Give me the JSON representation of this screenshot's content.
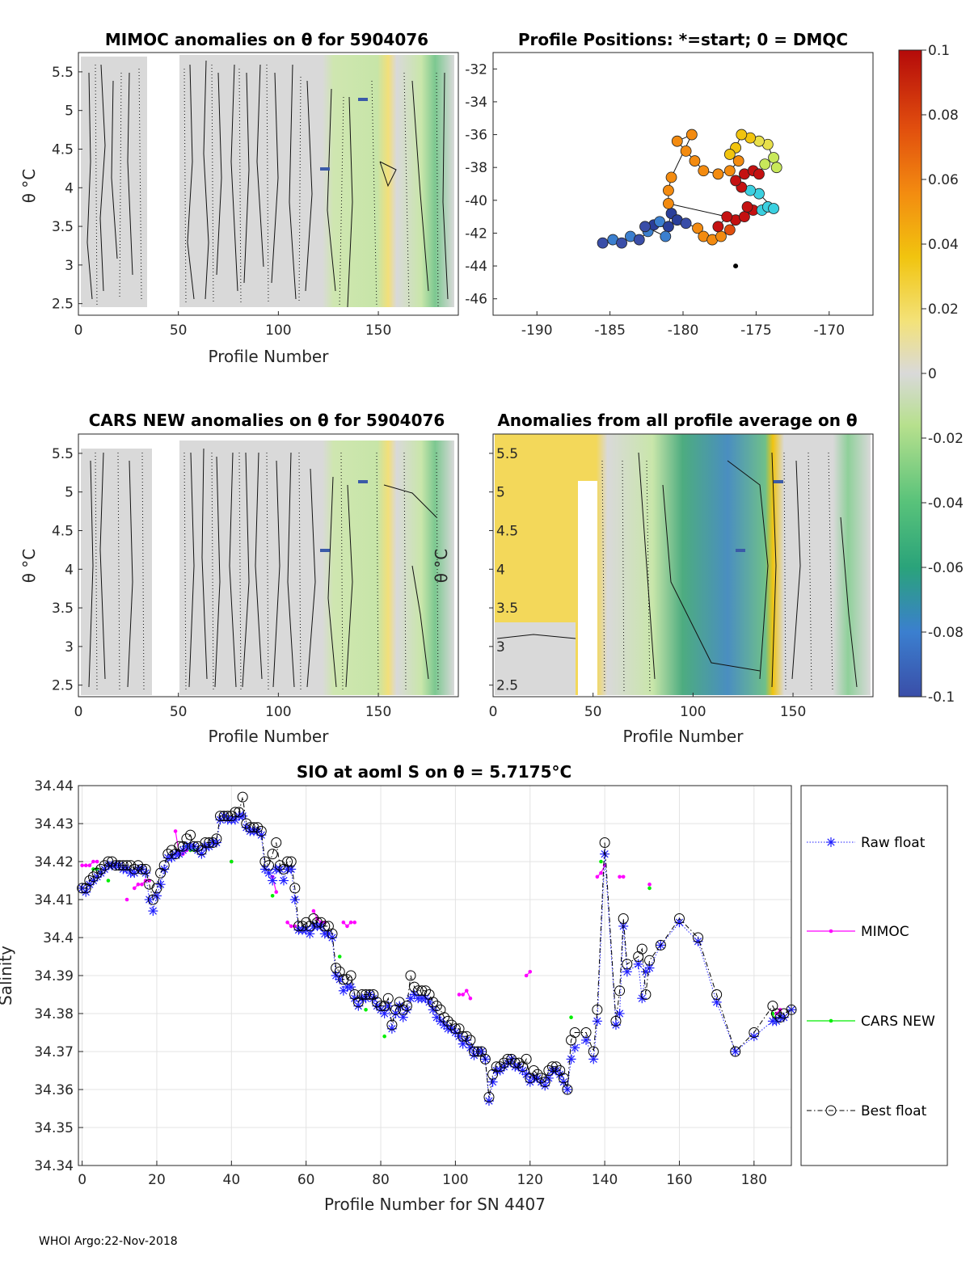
{
  "colors": {
    "raw": "#1f1fff",
    "mimoc": "#ff00ff",
    "cars": "#00ee00",
    "best": "#000000",
    "colorbar_stops": [
      "#3a4ea8",
      "#3b7fcf",
      "#2aa37a",
      "#58c27a",
      "#b7e08d",
      "#d9d9d9",
      "#f3e27a",
      "#f1c40f",
      "#f38b10",
      "#e14e0e",
      "#b40a0a"
    ]
  },
  "panels": {
    "mimoc": {
      "title": "MIMOC anomalies on θ  for 5904076",
      "ylabel": "θ °C",
      "xlabel": "Profile Number",
      "yticks": [
        "5.5",
        "5",
        "4.5",
        "4",
        "3.5",
        "3",
        "2.5"
      ],
      "xticks": [
        "0",
        "50",
        "100",
        "150"
      ]
    },
    "positions": {
      "title": "Profile Positions: *=start; 0 = DMQC",
      "yticks": [
        "-32",
        "-34",
        "-36",
        "-38",
        "-40",
        "-42",
        "-44",
        "-46"
      ],
      "xticks": [
        "-190",
        "-185",
        "-180",
        "-175",
        "-170"
      ]
    },
    "cars": {
      "title": "CARS NEW anomalies on θ for 5904076",
      "ylabel": "θ °C",
      "xlabel": "Profile Number",
      "yticks": [
        "5.5",
        "5",
        "4.5",
        "4",
        "3.5",
        "3",
        "2.5"
      ],
      "xticks": [
        "0",
        "50",
        "100",
        "150"
      ]
    },
    "average": {
      "title": "Anomalies from all profile average on θ",
      "ylabel": "θ °C",
      "xlabel": "Profile Number",
      "yticks": [
        "5.5",
        "5",
        "4.5",
        "4",
        "3.5",
        "3",
        "2.5"
      ],
      "xticks": [
        "0",
        "50",
        "100",
        "150"
      ]
    }
  },
  "colorbar": {
    "ticks": [
      "0.1",
      "0.08",
      "0.06",
      "0.04",
      "0.02",
      "0",
      "-0.02",
      "-0.04",
      "-0.06",
      "-0.08",
      "-0.1"
    ]
  },
  "footer": "WHOI Argo:22-Nov-2018",
  "legend": [
    "Raw float",
    "MIMOC",
    "CARS NEW",
    "Best float"
  ],
  "chart_data": [
    {
      "type": "heatmap",
      "title": "MIMOC anomalies on θ  for 5904076",
      "xlabel": "Profile Number",
      "ylabel": "θ °C",
      "xlim": [
        0,
        190
      ],
      "ylim": [
        2.35,
        5.75
      ],
      "clim": [
        -0.1,
        0.1
      ]
    },
    {
      "type": "scatter",
      "title": "Profile Positions: *=start; 0 = DMQC",
      "xlim": [
        -193,
        -167
      ],
      "ylim": [
        -47,
        -31
      ],
      "note": "float track colored by anomaly"
    },
    {
      "type": "heatmap",
      "title": "CARS NEW anomalies on θ for 5904076",
      "xlabel": "Profile Number",
      "ylabel": "θ °C",
      "xlim": [
        0,
        190
      ],
      "ylim": [
        2.35,
        5.75
      ],
      "clim": [
        -0.1,
        0.1
      ]
    },
    {
      "type": "heatmap",
      "title": "Anomalies from all profile average on θ",
      "xlabel": "Profile Number",
      "ylabel": "θ °C",
      "xlim": [
        0,
        190
      ],
      "ylim": [
        2.35,
        5.75
      ],
      "clim": [
        -0.1,
        0.1
      ]
    },
    {
      "type": "line",
      "title": "SIO at aoml S on θ = 5.7175°C",
      "xlabel": "Profile Number for SN 4407",
      "ylabel": "Salinity",
      "xlim": [
        -1,
        190
      ],
      "ylim": [
        34.34,
        34.44
      ],
      "xticks": [
        "0",
        "20",
        "40",
        "60",
        "80",
        "100",
        "120",
        "140",
        "160",
        "180"
      ],
      "yticks": [
        "34.44",
        "34.43",
        "34.42",
        "34.41",
        "34.4",
        "34.39",
        "34.38",
        "34.37",
        "34.36",
        "34.35",
        "34.34"
      ],
      "series": [
        {
          "name": "Raw float",
          "x": [
            0,
            1,
            2,
            3,
            4,
            5,
            6,
            7,
            8,
            9,
            10,
            11,
            12,
            13,
            14,
            15,
            16,
            17,
            18,
            19,
            20,
            21,
            22,
            23,
            24,
            25,
            26,
            27,
            28,
            29,
            30,
            31,
            32,
            33,
            34,
            35,
            36,
            37,
            38,
            39,
            40,
            41,
            42,
            43,
            44,
            45,
            46,
            47,
            48,
            49,
            50,
            51,
            52,
            53,
            54,
            55,
            56,
            57,
            58,
            59,
            60,
            61,
            62,
            63,
            64,
            65,
            66,
            67,
            68,
            69,
            70,
            71,
            72,
            73,
            74,
            75,
            76,
            77,
            78,
            79,
            80,
            81,
            82,
            83,
            84,
            85,
            86,
            87,
            88,
            89,
            90,
            91,
            92,
            93,
            94,
            95,
            96,
            97,
            98,
            99,
            100,
            101,
            102,
            103,
            104,
            105,
            106,
            107,
            108,
            109,
            110,
            111,
            112,
            113,
            114,
            115,
            116,
            117,
            118,
            119,
            120,
            121,
            122,
            123,
            124,
            125,
            126,
            127,
            128,
            129,
            130,
            131,
            132,
            135,
            137,
            138,
            140,
            143,
            144,
            145,
            146,
            149,
            150,
            151,
            152,
            155,
            160,
            165,
            170,
            175,
            180,
            185,
            186,
            187,
            188,
            190
          ],
          "y": [
            34.413,
            34.412,
            34.414,
            34.415,
            34.416,
            34.417,
            34.418,
            34.419,
            34.419,
            34.419,
            34.419,
            34.418,
            34.418,
            34.417,
            34.417,
            34.418,
            34.418,
            34.417,
            34.41,
            34.407,
            34.411,
            34.414,
            34.418,
            34.421,
            34.421,
            34.422,
            34.422,
            34.423,
            34.424,
            34.424,
            34.424,
            34.423,
            34.422,
            34.424,
            34.424,
            34.425,
            34.425,
            34.431,
            34.432,
            34.431,
            34.431,
            34.431,
            34.432,
            34.432,
            34.429,
            34.428,
            34.428,
            34.428,
            34.427,
            34.418,
            34.417,
            34.415,
            34.418,
            34.418,
            34.415,
            34.418,
            34.418,
            34.41,
            34.402,
            34.402,
            34.402,
            34.401,
            34.403,
            34.403,
            34.403,
            34.401,
            34.401,
            34.4,
            34.39,
            34.389,
            34.386,
            34.387,
            34.387,
            34.384,
            34.382,
            34.384,
            34.384,
            34.385,
            34.384,
            34.382,
            34.381,
            34.38,
            34.382,
            34.376,
            34.38,
            34.382,
            34.379,
            34.381,
            34.384,
            34.385,
            34.384,
            34.384,
            34.384,
            34.383,
            34.381,
            34.379,
            34.378,
            34.377,
            34.376,
            34.376,
            34.375,
            34.374,
            34.372,
            34.373,
            34.371,
            34.369,
            34.37,
            34.37,
            34.368,
            34.357,
            34.362,
            34.365,
            34.365,
            34.366,
            34.367,
            34.368,
            34.366,
            34.366,
            34.365,
            34.364,
            34.362,
            34.363,
            34.363,
            34.362,
            34.361,
            34.363,
            34.365,
            34.365,
            34.364,
            34.362,
            34.36,
            34.368,
            34.371,
            34.373,
            34.368,
            34.378,
            34.422,
            34.377,
            34.38,
            34.403,
            34.391,
            34.393,
            34.384,
            34.391,
            34.392,
            34.398,
            34.404,
            34.399,
            34.383,
            34.37,
            34.374,
            34.378,
            34.378,
            34.379,
            34.379,
            34.381
          ]
        },
        {
          "name": "MIMOC",
          "x": [
            0,
            1,
            2,
            3,
            4,
            12,
            14,
            15,
            16,
            17,
            18,
            25,
            26,
            27,
            28,
            29,
            30,
            40,
            51,
            52,
            55,
            56,
            57,
            58,
            62,
            63,
            64,
            65,
            70,
            71,
            72,
            73,
            101,
            102,
            103,
            104,
            119,
            120,
            138,
            139,
            140,
            144,
            145,
            152,
            186,
            187
          ],
          "y": [
            34.419,
            34.419,
            34.419,
            34.42,
            34.42,
            34.41,
            34.413,
            34.414,
            34.414,
            34.415,
            34.415,
            34.428,
            34.422,
            34.422,
            34.423,
            34.423,
            34.423,
            34.42,
            34.416,
            34.412,
            34.404,
            34.403,
            34.403,
            34.402,
            34.407,
            34.405,
            34.404,
            34.404,
            34.404,
            34.403,
            34.404,
            34.404,
            34.385,
            34.385,
            34.386,
            34.384,
            34.39,
            34.391,
            34.416,
            34.417,
            34.419,
            34.416,
            34.416,
            34.414,
            34.38,
            34.381
          ]
        },
        {
          "name": "CARS NEW",
          "x": [
            3,
            4,
            5,
            7,
            28,
            29,
            30,
            40,
            51,
            69,
            76,
            81,
            131,
            139,
            152,
            185,
            186,
            187
          ],
          "y": [
            34.418,
            34.418,
            34.417,
            34.415,
            34.424,
            34.423,
            34.423,
            34.42,
            34.411,
            34.395,
            34.381,
            34.374,
            34.379,
            34.42,
            34.413,
            34.38,
            34.378,
            34.379
          ]
        },
        {
          "name": "Best float",
          "x": [
            0,
            1,
            2,
            3,
            4,
            5,
            6,
            7,
            8,
            9,
            10,
            11,
            12,
            13,
            14,
            15,
            16,
            17,
            18,
            19,
            20,
            21,
            22,
            23,
            24,
            25,
            26,
            27,
            28,
            29,
            30,
            31,
            32,
            33,
            34,
            35,
            36,
            37,
            38,
            39,
            40,
            41,
            42,
            43,
            44,
            45,
            46,
            47,
            48,
            49,
            50,
            51,
            52,
            53,
            54,
            55,
            56,
            57,
            58,
            59,
            60,
            61,
            62,
            63,
            64,
            65,
            66,
            67,
            68,
            69,
            70,
            71,
            72,
            73,
            74,
            75,
            76,
            77,
            78,
            79,
            80,
            81,
            82,
            83,
            84,
            85,
            86,
            87,
            88,
            89,
            90,
            91,
            92,
            93,
            94,
            95,
            96,
            97,
            98,
            99,
            100,
            101,
            102,
            103,
            104,
            105,
            106,
            107,
            108,
            109,
            110,
            111,
            112,
            113,
            114,
            115,
            116,
            117,
            118,
            119,
            120,
            121,
            122,
            123,
            124,
            125,
            126,
            127,
            128,
            129,
            130,
            131,
            132,
            135,
            137,
            138,
            140,
            143,
            144,
            145,
            146,
            149,
            150,
            151,
            152,
            155,
            160,
            165,
            170,
            175,
            180,
            185,
            186,
            187,
            188,
            190
          ],
          "y": [
            34.413,
            34.413,
            34.415,
            34.416,
            34.417,
            34.418,
            34.419,
            34.42,
            34.42,
            34.419,
            34.419,
            34.419,
            34.419,
            34.419,
            34.418,
            34.419,
            34.418,
            34.418,
            34.414,
            34.41,
            34.413,
            34.417,
            34.419,
            34.422,
            34.423,
            34.422,
            34.424,
            34.424,
            34.426,
            34.427,
            34.424,
            34.424,
            34.423,
            34.425,
            34.425,
            34.425,
            34.426,
            34.432,
            34.432,
            34.432,
            34.432,
            34.433,
            34.433,
            34.437,
            34.43,
            34.429,
            34.429,
            34.429,
            34.428,
            34.42,
            34.419,
            34.422,
            34.425,
            34.419,
            34.418,
            34.42,
            34.42,
            34.413,
            34.403,
            34.403,
            34.404,
            34.403,
            34.405,
            34.404,
            34.404,
            34.403,
            34.403,
            34.401,
            34.392,
            34.391,
            34.389,
            34.389,
            34.39,
            34.385,
            34.383,
            34.385,
            34.385,
            34.385,
            34.385,
            34.383,
            34.382,
            34.382,
            34.384,
            34.377,
            34.381,
            34.383,
            34.381,
            34.382,
            34.39,
            34.387,
            34.386,
            34.386,
            34.386,
            34.385,
            34.383,
            34.382,
            34.381,
            34.379,
            34.378,
            34.377,
            34.376,
            34.376,
            34.374,
            34.374,
            34.373,
            34.37,
            34.37,
            34.37,
            34.368,
            34.358,
            34.364,
            34.366,
            34.366,
            34.367,
            34.368,
            34.368,
            34.367,
            34.367,
            34.366,
            34.368,
            34.363,
            34.365,
            34.364,
            34.363,
            34.362,
            34.365,
            34.366,
            34.366,
            34.365,
            34.363,
            34.36,
            34.373,
            34.375,
            34.375,
            34.37,
            34.381,
            34.425,
            34.378,
            34.386,
            34.405,
            34.393,
            34.395,
            34.397,
            34.385,
            34.394,
            34.398,
            34.405,
            34.4,
            34.385,
            34.37,
            34.375,
            34.382,
            34.38,
            34.379,
            34.38,
            34.381
          ]
        }
      ]
    }
  ]
}
